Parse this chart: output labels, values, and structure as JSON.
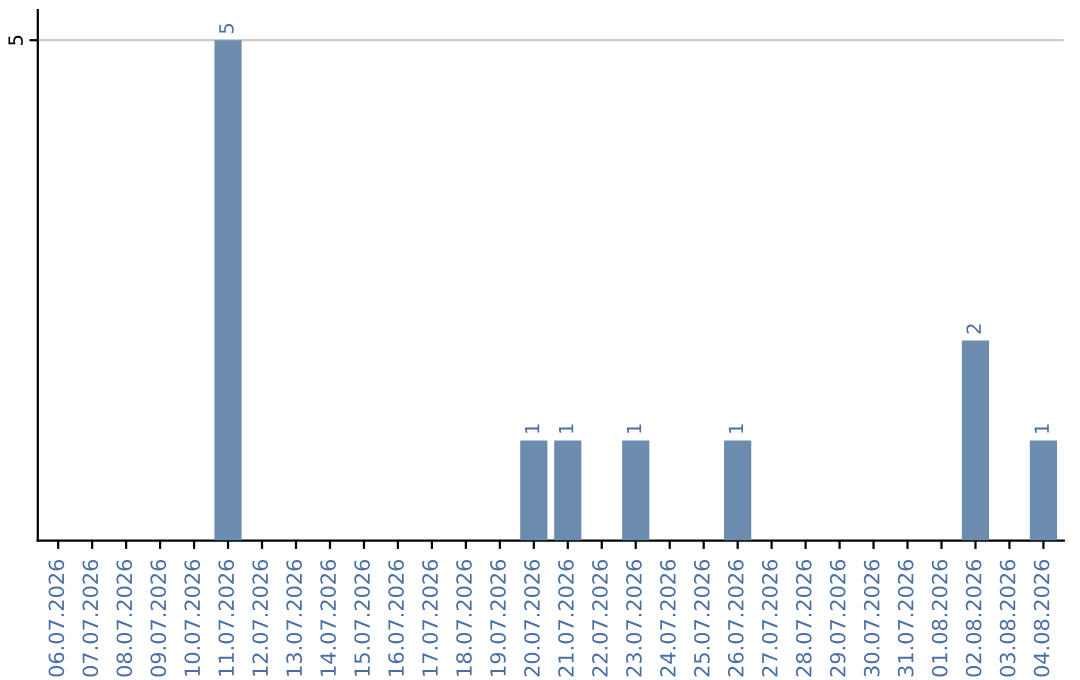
{
  "chart_data": {
    "type": "bar",
    "categories": [
      "06.07.2026",
      "07.07.2026",
      "08.07.2026",
      "09.07.2026",
      "10.07.2026",
      "11.07.2026",
      "12.07.2026",
      "13.07.2026",
      "14.07.2026",
      "15.07.2026",
      "16.07.2026",
      "17.07.2026",
      "18.07.2026",
      "19.07.2026",
      "20.07.2026",
      "21.07.2026",
      "22.07.2026",
      "23.07.2026",
      "24.07.2026",
      "25.07.2026",
      "26.07.2026",
      "27.07.2026",
      "28.07.2026",
      "29.07.2026",
      "30.07.2026",
      "31.07.2026",
      "01.08.2026",
      "02.08.2026",
      "03.08.2026",
      "04.08.2026"
    ],
    "values": [
      0,
      0,
      0,
      0,
      0,
      5,
      0,
      0,
      0,
      0,
      0,
      0,
      0,
      0,
      1,
      1,
      0,
      1,
      0,
      0,
      1,
      0,
      0,
      0,
      0,
      0,
      0,
      2,
      0,
      1
    ],
    "value_labels": [
      null,
      null,
      null,
      null,
      null,
      "5",
      null,
      null,
      null,
      null,
      null,
      null,
      null,
      null,
      "1",
      "1",
      null,
      "1",
      null,
      null,
      "1",
      null,
      null,
      null,
      null,
      null,
      null,
      "2",
      null,
      "1"
    ],
    "color": "#6b8cae",
    "ylim": [
      0,
      5.3
    ],
    "yticks": [
      5
    ],
    "grid": "y"
  }
}
